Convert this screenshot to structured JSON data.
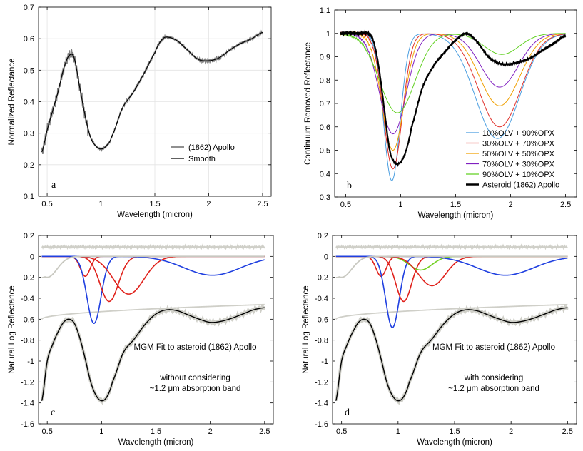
{
  "chart_data": [
    {
      "panel": "a",
      "type": "line",
      "xlabel": "Wavelength (micron)",
      "ylabel": "Normalized Reflectance",
      "xlim": [
        0.42,
        2.58
      ],
      "ylim": [
        0.1,
        0.7
      ],
      "xticks": [
        0.5,
        1,
        1.5,
        2,
        2.5
      ],
      "xtick_labels": [
        "0.5",
        "1",
        "1.5",
        "2",
        "2.5"
      ],
      "yticks": [
        0.1,
        0.2,
        0.3,
        0.4,
        0.5,
        0.6,
        0.7
      ],
      "ytick_labels": [
        "0.1",
        "0.2",
        "0.3",
        "0.4",
        "0.5",
        "0.6",
        "0.7"
      ],
      "grid": true,
      "legend_position": "lower-right",
      "series": [
        {
          "name": "(1862) Apollo",
          "color": "#808080",
          "noisy": true,
          "x": [
            0.45,
            0.5,
            0.55,
            0.6,
            0.65,
            0.7,
            0.75,
            0.8,
            0.85,
            0.9,
            0.95,
            1.0,
            1.05,
            1.1,
            1.2,
            1.3,
            1.4,
            1.5,
            1.55,
            1.6,
            1.7,
            1.8,
            1.9,
            2.0,
            2.1,
            2.2,
            2.3,
            2.4,
            2.5
          ],
          "y": [
            0.24,
            0.31,
            0.37,
            0.43,
            0.5,
            0.545,
            0.54,
            0.45,
            0.36,
            0.29,
            0.26,
            0.25,
            0.26,
            0.29,
            0.38,
            0.43,
            0.49,
            0.555,
            0.59,
            0.605,
            0.595,
            0.565,
            0.535,
            0.53,
            0.54,
            0.565,
            0.585,
            0.6,
            0.62
          ]
        },
        {
          "name": "Smooth",
          "color": "#000000",
          "noisy": false,
          "x": [
            0.45,
            0.5,
            0.55,
            0.6,
            0.65,
            0.7,
            0.75,
            0.8,
            0.85,
            0.9,
            0.95,
            1.0,
            1.05,
            1.1,
            1.2,
            1.3,
            1.4,
            1.5,
            1.55,
            1.6,
            1.7,
            1.8,
            1.9,
            2.0,
            2.1,
            2.2,
            2.3,
            2.4,
            2.5
          ],
          "y": [
            0.24,
            0.31,
            0.37,
            0.43,
            0.5,
            0.545,
            0.54,
            0.45,
            0.36,
            0.29,
            0.26,
            0.25,
            0.26,
            0.29,
            0.38,
            0.43,
            0.49,
            0.555,
            0.59,
            0.605,
            0.595,
            0.565,
            0.535,
            0.53,
            0.54,
            0.565,
            0.585,
            0.6,
            0.62
          ]
        }
      ]
    },
    {
      "panel": "b",
      "type": "line",
      "xlabel": "Wavelength (micron)",
      "ylabel": "Continuum Removed Reflectance",
      "xlim": [
        0.4,
        2.6
      ],
      "ylim": [
        0.3,
        1.1
      ],
      "xticks": [
        0.5,
        1,
        1.5,
        2,
        2.5
      ],
      "xtick_labels": [
        "0.5",
        "1",
        "1.5",
        "2",
        "2.5"
      ],
      "yticks": [
        0.3,
        0.4,
        0.5,
        0.6,
        0.7,
        0.8,
        0.9,
        1.0,
        1.1
      ],
      "ytick_labels": [
        "0.3",
        "0.4",
        "0.5",
        "0.6",
        "0.7",
        "0.8",
        "0.9",
        "1",
        "1.1"
      ],
      "grid": false,
      "legend_position": "lower-right",
      "series": [
        {
          "name": "10%OLV + 90%OPX",
          "color": "#4a9ee0",
          "band1": {
            "c": 0.92,
            "d": 0.63,
            "w": 0.075
          },
          "band2": {
            "c": 1.88,
            "d": 0.45,
            "w": 0.2
          }
        },
        {
          "name": "30%OLV + 70%OPX",
          "color": "#e0302a",
          "band1": {
            "c": 0.93,
            "d": 0.58,
            "w": 0.085
          },
          "band2": {
            "c": 1.9,
            "d": 0.4,
            "w": 0.19
          }
        },
        {
          "name": "50%OLV + 50%OPX",
          "color": "#f0a000",
          "band1": {
            "c": 0.93,
            "d": 0.5,
            "w": 0.1
          },
          "band2": {
            "c": 1.9,
            "d": 0.31,
            "w": 0.18
          }
        },
        {
          "name": "70%OLV + 30%OPX",
          "color": "#8020c0",
          "band1": {
            "c": 0.93,
            "d": 0.43,
            "w": 0.12
          },
          "band2": {
            "c": 1.9,
            "d": 0.23,
            "w": 0.17
          }
        },
        {
          "name": "90%OLV + 10%OPX",
          "color": "#60d020",
          "band1": {
            "c": 0.97,
            "d": 0.34,
            "w": 0.16
          },
          "band2": {
            "c": 1.92,
            "d": 0.09,
            "w": 0.16
          }
        },
        {
          "name": "Asteroid (1862) Apollo",
          "color": "#000000",
          "bold": true,
          "x": [
            0.45,
            0.5,
            0.6,
            0.7,
            0.75,
            0.8,
            0.85,
            0.9,
            0.95,
            1.0,
            1.05,
            1.1,
            1.2,
            1.3,
            1.4,
            1.5,
            1.6,
            1.7,
            1.8,
            1.9,
            2.0,
            2.1,
            2.2,
            2.3,
            2.4,
            2.5
          ],
          "y": [
            1.0,
            1.0,
            1.0,
            1.0,
            0.97,
            0.86,
            0.68,
            0.5,
            0.445,
            0.45,
            0.5,
            0.6,
            0.77,
            0.86,
            0.92,
            0.97,
            1.0,
            0.96,
            0.9,
            0.87,
            0.87,
            0.88,
            0.9,
            0.93,
            0.96,
            0.99
          ]
        }
      ]
    },
    {
      "panel": "c",
      "type": "line",
      "xlabel": "Wavelength (micron)",
      "ylabel": "Natural Log Reflectance",
      "xlim": [
        0.42,
        2.58
      ],
      "ylim": [
        -1.6,
        0.2
      ],
      "xticks": [
        0.5,
        1,
        1.5,
        2,
        2.5
      ],
      "xtick_labels": [
        "0.5",
        "1",
        "1.5",
        "2",
        "2.5"
      ],
      "yticks": [
        -1.6,
        -1.4,
        -1.2,
        -1.0,
        -0.8,
        -0.6,
        -0.4,
        -0.2,
        0,
        0.2
      ],
      "ytick_labels": [
        "-1.6",
        "-1.4",
        "-1.2",
        "-1",
        "-0.8",
        "-0.6",
        "-0.4",
        "-0.2",
        "0",
        "0.2"
      ],
      "grid": false,
      "annotation_lines": [
        "MGM Fit to asteroid (1862) Apollo",
        "without considering",
        "~1.2 μm absorption band"
      ],
      "spectrum": {
        "x": [
          0.45,
          0.5,
          0.55,
          0.6,
          0.65,
          0.7,
          0.75,
          0.8,
          0.85,
          0.9,
          0.95,
          1.0,
          1.05,
          1.1,
          1.2,
          1.3,
          1.4,
          1.5,
          1.6,
          1.7,
          1.8,
          1.9,
          2.0,
          2.1,
          2.2,
          2.3,
          2.4,
          2.5
        ],
        "y": [
          -1.38,
          -1.0,
          -0.84,
          -0.72,
          -0.63,
          -0.6,
          -0.64,
          -0.78,
          -0.98,
          -1.2,
          -1.33,
          -1.38,
          -1.34,
          -1.2,
          -0.92,
          -0.79,
          -0.65,
          -0.55,
          -0.51,
          -0.52,
          -0.56,
          -0.6,
          -0.63,
          -0.62,
          -0.59,
          -0.55,
          -0.51,
          -0.49
        ]
      },
      "continuum": {
        "x": [
          0.45,
          2.5
        ],
        "y": [
          -0.6,
          -0.46
        ]
      },
      "residual_level": 0.09,
      "bands": [
        {
          "center": 0.85,
          "depth": -0.19,
          "width": 0.045,
          "color": "#e0201a"
        },
        {
          "center": 0.93,
          "depth": -0.64,
          "width": 0.065,
          "color": "#2040e0"
        },
        {
          "center": 1.07,
          "depth": -0.43,
          "width": 0.085,
          "color": "#e0201a"
        },
        {
          "center": 1.25,
          "depth": -0.36,
          "width": 0.14,
          "color": "#e0201a"
        },
        {
          "center": 2.02,
          "depth": -0.18,
          "width": 0.26,
          "color": "#2040e0"
        },
        {
          "center": 0.5,
          "depth": -0.2,
          "width": 0.09,
          "color": "#c8c8c0"
        }
      ]
    },
    {
      "panel": "d",
      "type": "line",
      "xlabel": "Wavelength (micron)",
      "ylabel": "Natural Log Reflectance",
      "xlim": [
        0.42,
        2.58
      ],
      "ylim": [
        -1.6,
        0.2
      ],
      "xticks": [
        0.5,
        1,
        1.5,
        2,
        2.5
      ],
      "xtick_labels": [
        "0.5",
        "1",
        "1.5",
        "2",
        "2.5"
      ],
      "yticks": [
        -1.6,
        -1.4,
        -1.2,
        -1.0,
        -0.8,
        -0.6,
        -0.4,
        -0.2,
        0,
        0.2
      ],
      "ytick_labels": [
        "-1.6",
        "-1.4",
        "-1.2",
        "-1",
        "-0.8",
        "-0.6",
        "-0.4",
        "-0.2",
        "0",
        "0.2"
      ],
      "grid": false,
      "annotation_lines": [
        "MGM Fit to asteroid (1862) Apollo",
        "with considering",
        "~1.2 μm absorption band"
      ],
      "spectrum": {
        "x": [
          0.45,
          0.5,
          0.55,
          0.6,
          0.65,
          0.7,
          0.75,
          0.8,
          0.85,
          0.9,
          0.95,
          1.0,
          1.05,
          1.1,
          1.2,
          1.3,
          1.4,
          1.5,
          1.6,
          1.7,
          1.8,
          1.9,
          2.0,
          2.1,
          2.2,
          2.3,
          2.4,
          2.5
        ],
        "y": [
          -1.38,
          -1.0,
          -0.84,
          -0.72,
          -0.63,
          -0.6,
          -0.64,
          -0.78,
          -0.98,
          -1.2,
          -1.33,
          -1.38,
          -1.34,
          -1.2,
          -0.92,
          -0.79,
          -0.65,
          -0.55,
          -0.51,
          -0.52,
          -0.56,
          -0.6,
          -0.63,
          -0.62,
          -0.59,
          -0.55,
          -0.51,
          -0.49
        ]
      },
      "continuum": {
        "x": [
          0.45,
          2.5
        ],
        "y": [
          -0.6,
          -0.46
        ]
      },
      "residual_level": 0.09,
      "bands": [
        {
          "center": 0.85,
          "depth": -0.19,
          "width": 0.045,
          "color": "#e0201a"
        },
        {
          "center": 0.95,
          "depth": -0.68,
          "width": 0.06,
          "color": "#2040e0"
        },
        {
          "center": 1.05,
          "depth": -0.43,
          "width": 0.07,
          "color": "#e0201a"
        },
        {
          "center": 1.2,
          "depth": -0.13,
          "width": 0.1,
          "color": "#70d020"
        },
        {
          "center": 1.3,
          "depth": -0.28,
          "width": 0.12,
          "color": "#e0201a"
        },
        {
          "center": 1.95,
          "depth": -0.18,
          "width": 0.25,
          "color": "#2040e0"
        },
        {
          "center": 0.5,
          "depth": -0.2,
          "width": 0.09,
          "color": "#c8c8c0"
        }
      ]
    }
  ],
  "panels": {
    "a": {
      "letter": "a",
      "legend": [
        "(1862) Apollo",
        "Smooth"
      ]
    },
    "b": {
      "letter": "b",
      "legend": [
        "10%OLV + 90%OPX",
        "30%OLV + 70%OPX",
        "50%OLV + 50%OPX",
        "70%OLV + 30%OPX",
        "90%OLV + 10%OPX",
        "Asteroid (1862) Apollo"
      ]
    },
    "c": {
      "letter": "c"
    },
    "d": {
      "letter": "d"
    }
  }
}
